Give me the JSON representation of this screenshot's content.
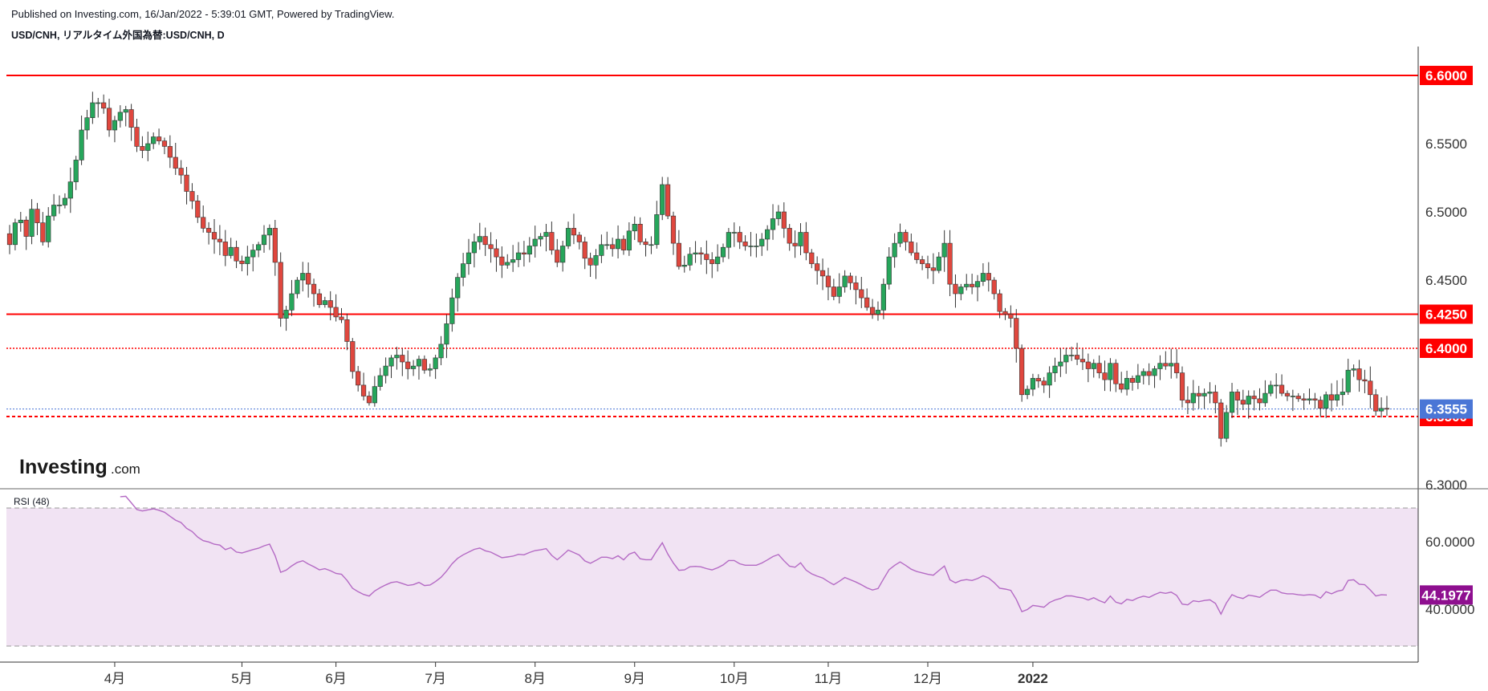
{
  "header": {
    "published": "Published on Investing.com, 16/Jan/2022 - 5:39:01 GMT, Powered by TradingView.",
    "symbol": "USD/CNH, リアルタイム外国為替:USD/CNH, D"
  },
  "logo": {
    "main": "Investing",
    "domain": ".com"
  },
  "colors": {
    "up": "#26a65b",
    "down": "#e0473e",
    "hline": "#ff0000",
    "current_line": "#4a76d6",
    "rsi_line": "#b46ac4",
    "rsi_band": "#f1e3f3",
    "rsi_tag": "#8e0f8f"
  },
  "chart_data": [
    {
      "type": "candlestick",
      "title": "USD/CNH, リアルタイム外国為替:USD/CNH, D",
      "x_tick_labels": [
        "4月",
        "5月",
        "6月",
        "7月",
        "8月",
        "9月",
        "10月",
        "11月",
        "12月",
        "2022"
      ],
      "y_ticks": [
        "6.3000",
        "6.3500",
        "6.4000",
        "6.4500",
        "6.5000",
        "6.5500",
        "6.6000"
      ],
      "ylim": [
        6.29,
        6.62
      ],
      "current_price": 6.3555,
      "horizontal_lines": [
        {
          "value": 6.6,
          "label": "6.6000",
          "style": "solid"
        },
        {
          "value": 6.425,
          "label": "6.4250",
          "style": "solid"
        },
        {
          "value": 6.4,
          "label": "6.4000",
          "style": "dotted"
        },
        {
          "value": 6.35,
          "label": "6.3500",
          "style": "dashed"
        }
      ],
      "current_price_label": "6.3555",
      "close_series": [
        6.476,
        6.492,
        6.494,
        6.482,
        6.502,
        6.492,
        6.478,
        6.497,
        6.505,
        6.505,
        6.51,
        6.522,
        6.538,
        6.56,
        6.569,
        6.58,
        6.58,
        6.576,
        6.56,
        6.567,
        6.573,
        6.575,
        6.562,
        6.548,
        6.545,
        6.55,
        6.555,
        6.552,
        6.548,
        6.54,
        6.532,
        6.527,
        6.515,
        6.508,
        6.496,
        6.488,
        6.485,
        6.48,
        6.478,
        6.468,
        6.474,
        6.464,
        6.462,
        6.467,
        6.472,
        6.476,
        6.483,
        6.488,
        6.463,
        6.422,
        6.428,
        6.44,
        6.45,
        6.455,
        6.447,
        6.44,
        6.432,
        6.435,
        6.43,
        6.423,
        6.421,
        6.405,
        6.383,
        6.373,
        6.365,
        6.36,
        6.372,
        6.38,
        6.387,
        6.393,
        6.395,
        6.39,
        6.385,
        6.387,
        6.392,
        6.384,
        6.385,
        6.393,
        6.403,
        6.418,
        6.437,
        6.452,
        6.462,
        6.47,
        6.478,
        6.482,
        6.476,
        6.473,
        6.467,
        6.461,
        6.463,
        6.465,
        6.47,
        6.469,
        6.475,
        6.48,
        6.482,
        6.485,
        6.472,
        6.463,
        6.475,
        6.488,
        6.483,
        6.478,
        6.466,
        6.461,
        6.468,
        6.476,
        6.476,
        6.473,
        6.48,
        6.472,
        6.486,
        6.491,
        6.478,
        6.476,
        6.476,
        6.498,
        6.52,
        6.497,
        6.477,
        6.46,
        6.461,
        6.469,
        6.47,
        6.469,
        6.465,
        6.462,
        6.467,
        6.474,
        6.485,
        6.485,
        6.478,
        6.475,
        6.475,
        6.475,
        6.48,
        6.487,
        6.495,
        6.5,
        6.488,
        6.477,
        6.475,
        6.485,
        6.47,
        6.462,
        6.457,
        6.453,
        6.445,
        6.438,
        6.445,
        6.453,
        6.448,
        6.443,
        6.437,
        6.43,
        6.425,
        6.428,
        6.447,
        6.467,
        6.477,
        6.485,
        6.478,
        6.47,
        6.465,
        6.462,
        6.459,
        6.457,
        6.467,
        6.477,
        6.447,
        6.44,
        6.445,
        6.447,
        6.445,
        6.449,
        6.455,
        6.45,
        6.44,
        6.427,
        6.425,
        6.422,
        6.4,
        6.366,
        6.37,
        6.378,
        6.376,
        6.373,
        6.382,
        6.387,
        6.39,
        6.395,
        6.395,
        6.392,
        6.39,
        6.385,
        6.389,
        6.382,
        6.377,
        6.389,
        6.374,
        6.37,
        6.378,
        6.375,
        6.38,
        6.383,
        6.38,
        6.385,
        6.389,
        6.387,
        6.389,
        6.382,
        6.362,
        6.36,
        6.367,
        6.365,
        6.367,
        6.368,
        6.36,
        6.334,
        6.353,
        6.368,
        6.362,
        6.359,
        6.365,
        6.363,
        6.36,
        6.367,
        6.373,
        6.373,
        6.367,
        6.365,
        6.365,
        6.363,
        6.362,
        6.363,
        6.362,
        6.356,
        6.366,
        6.362,
        6.366,
        6.368,
        6.384,
        6.385,
        6.377,
        6.376,
        6.366,
        6.354,
        6.356,
        6.3555
      ],
      "annotations": [
        "Investing.com"
      ]
    },
    {
      "type": "line",
      "title": "RSI (48)",
      "y_ticks": [
        "40.0000",
        "60.0000"
      ],
      "band": [
        30,
        70
      ],
      "current_value": 44.1977,
      "current_label": "44.1977"
    }
  ]
}
